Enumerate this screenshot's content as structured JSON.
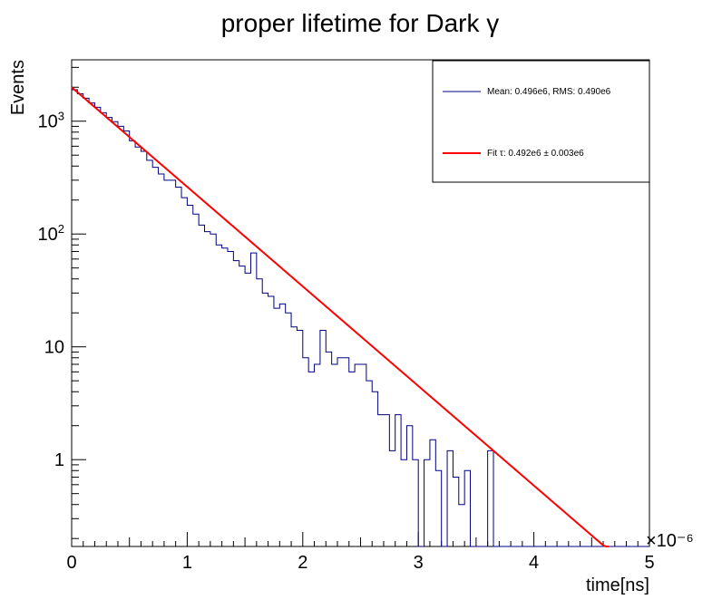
{
  "chart_data": {
    "type": "histogram",
    "title": "proper lifetime for Dark γ",
    "xlabel": "time[ns]",
    "ylabel": "Events",
    "x_exponent_label": "×10⁻⁶",
    "xlim": [
      0,
      5
    ],
    "ylim": [
      0.17,
      3500
    ],
    "y_scale": "log",
    "x_ticks": [
      0,
      1,
      2,
      3,
      4,
      5
    ],
    "x_tick_labels": [
      "0",
      "1",
      "2",
      "3",
      "4",
      "5"
    ],
    "y_ticks": [
      1,
      10,
      100,
      1000
    ],
    "y_tick_labels": [
      "1",
      "10",
      "10²",
      "10³"
    ],
    "bin_width": 0.05,
    "histogram": {
      "name": "Mean: 0.496e6, RMS: 0.490e6",
      "color": "#000080",
      "values": [
        1900,
        1750,
        1600,
        1450,
        1330,
        1190,
        1080,
        990,
        900,
        820,
        670,
        590,
        540,
        450,
        390,
        340,
        300,
        300,
        260,
        210,
        180,
        150,
        120,
        105,
        100,
        80,
        75,
        70,
        58,
        52,
        45,
        68,
        40,
        30,
        28,
        22,
        24,
        20,
        15,
        14,
        8,
        6,
        7,
        14,
        9,
        7,
        8,
        8,
        6,
        7,
        7,
        5,
        4,
        2.5,
        2.5,
        1.2,
        2.5,
        1.0,
        2.0,
        1.0,
        0.0,
        1.0,
        1.5,
        0.8,
        0.0,
        1.2,
        0.7,
        0.4,
        0.8,
        0.0,
        0.0,
        0.0,
        1.2,
        0.0,
        0.0,
        0.0,
        0.0,
        0.0,
        0.0,
        0.0,
        0.0,
        0.0,
        0.0,
        0.0,
        0.0,
        0.0,
        0.0,
        0.0,
        0.0,
        0.0,
        0.0,
        0.0,
        0.0,
        0.0,
        0.0,
        0.0,
        0.0,
        0.0,
        0.0,
        0.0
      ],
      "raw_values": [
        1900,
        1750,
        1600,
        1450,
        1330,
        1190,
        1080,
        990,
        900,
        820,
        670,
        590,
        540,
        450,
        390,
        340,
        300,
        300,
        260,
        210,
        180,
        150,
        120,
        105,
        100,
        80,
        75,
        70,
        58,
        52,
        45,
        68,
        40,
        30,
        28,
        22,
        24,
        20,
        15,
        14,
        8,
        6,
        7,
        14,
        9,
        7,
        8,
        8,
        6,
        7,
        7,
        5,
        4,
        2.5,
        2.5,
        1.2,
        2.5,
        1.0,
        2.0,
        1.0,
        0.0,
        1.0,
        1.5,
        0.8,
        0.0,
        1.2,
        0.7,
        0.4,
        0.8,
        0.0,
        0.0,
        0.0,
        1.2,
        0.0,
        0.0,
        0.0,
        0.0,
        0.0,
        0.0,
        0.0,
        0.0,
        0.0,
        0.0,
        0.0,
        0.0,
        0.0,
        0.0,
        0.0,
        0.0,
        0.0,
        0.0,
        0.0,
        0.0,
        0.0,
        0.0,
        0.0,
        0.0,
        0.0,
        0.0,
        0.0
      ]
    },
    "fit": {
      "name": "Fit τ: 0.492e6 ± 0.003e6",
      "color": "#ff0000",
      "type": "exponential",
      "amplitude": 2000,
      "tau": 0.492,
      "x_range": [
        0,
        4.65
      ]
    },
    "legend_position": "top-right"
  }
}
